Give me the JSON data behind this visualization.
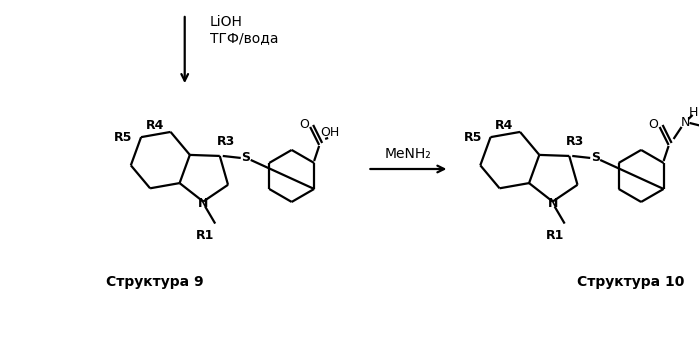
{
  "background_color": "#ffffff",
  "arrow1_label_line1": "LiOH",
  "arrow1_label_line2": "ТГФ/вода",
  "arrow2_label": "MeNH₂",
  "structure9_label": "Структура 9",
  "structure10_label": "Структура 10",
  "line_color": "#000000",
  "lw": 1.6,
  "fig_width": 7.0,
  "fig_height": 3.64,
  "dpi": 100
}
